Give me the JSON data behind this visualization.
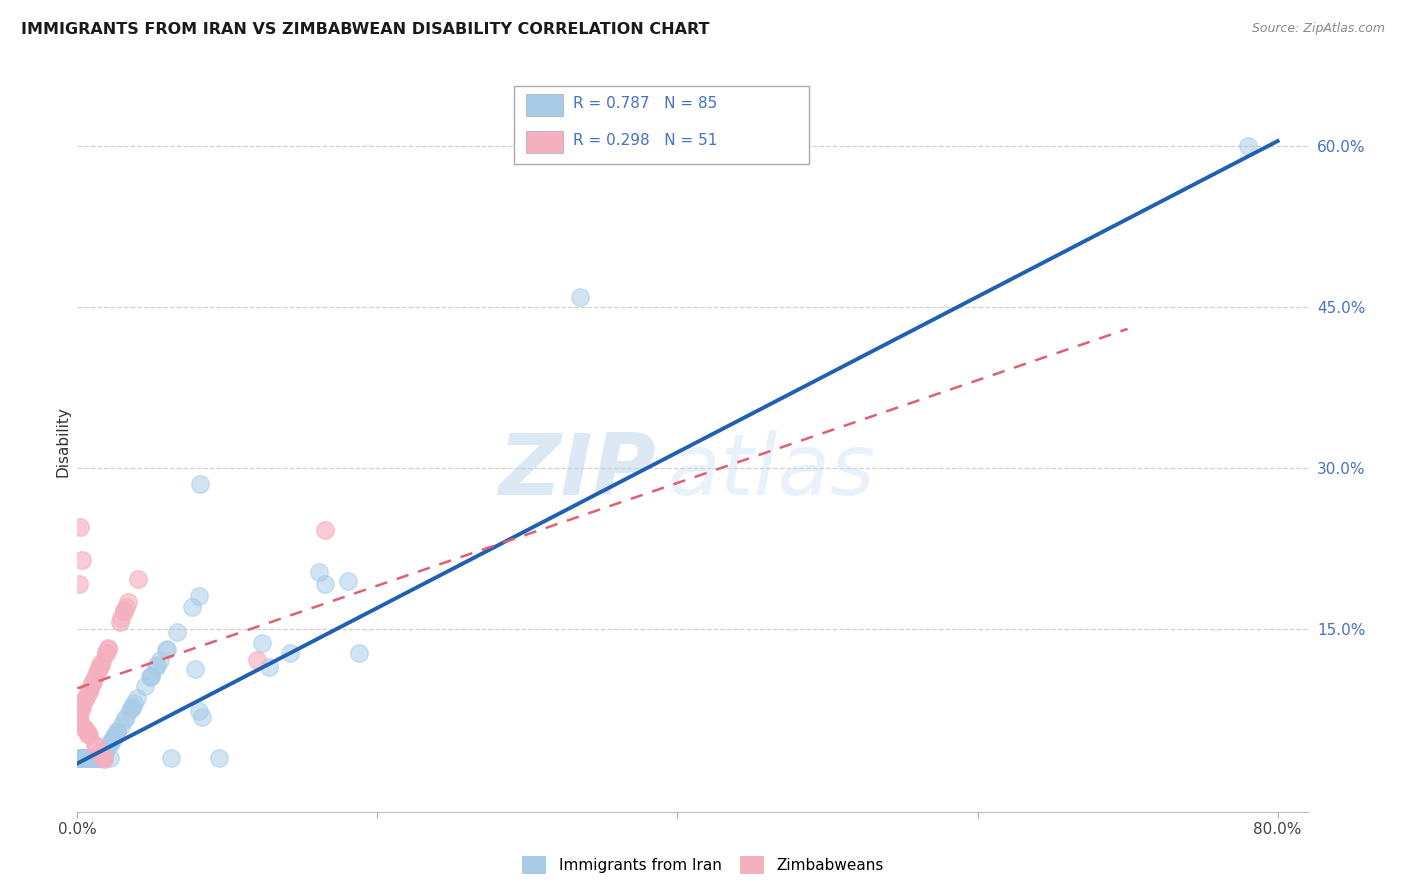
{
  "title": "IMMIGRANTS FROM IRAN VS ZIMBABWEAN DISABILITY CORRELATION CHART",
  "source": "Source: ZipAtlas.com",
  "ylabel": "Disability",
  "watermark_text": "ZIPatlas",
  "xlim": [
    0.0,
    0.82
  ],
  "ylim": [
    -0.02,
    0.67
  ],
  "xtick_positions": [
    0.0,
    0.2,
    0.4,
    0.6,
    0.8
  ],
  "xtick_labels": [
    "0.0%",
    "",
    "",
    "",
    "80.0%"
  ],
  "ytick_right_positions": [
    0.15,
    0.3,
    0.45,
    0.6
  ],
  "ytick_right_labels": [
    "15.0%",
    "30.0%",
    "45.0%",
    "60.0%"
  ],
  "legend_line1": "R = 0.787   N = 85",
  "legend_line2": "R = 0.298   N = 51",
  "bottom_legend": [
    "Immigrants from Iran",
    "Zimbabweans"
  ],
  "blue_fill_color": "#a8cce8",
  "pink_fill_color": "#f5b0c0",
  "blue_line_color": "#2060b0",
  "pink_line_color": "#e06070",
  "grid_line_color": "#cccccc",
  "background_color": "#ffffff",
  "blue_line_x": [
    0.0,
    0.8
  ],
  "blue_line_y": [
    0.025,
    0.605
  ],
  "pink_line_x": [
    0.0,
    0.7
  ],
  "pink_line_y": [
    0.095,
    0.43
  ]
}
